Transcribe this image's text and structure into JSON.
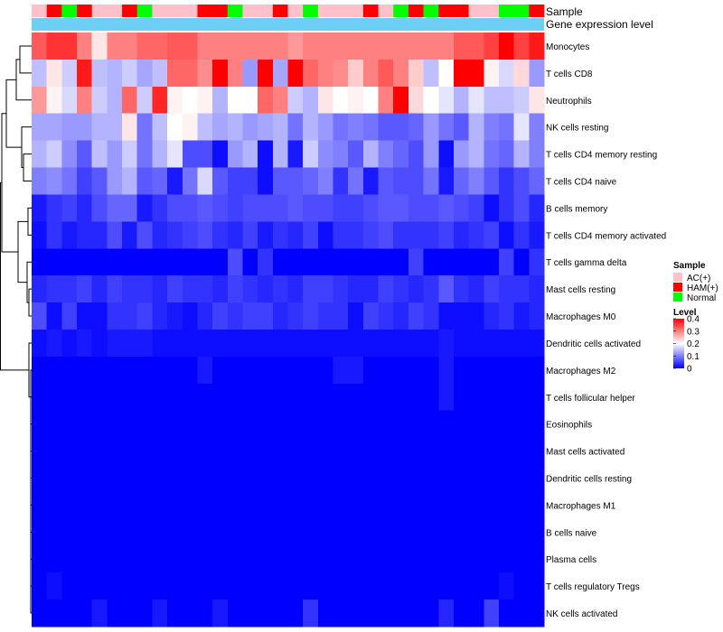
{
  "chart_data": {
    "type": "heatmap",
    "annotation_labels": {
      "sample": "Sample",
      "gene": "Gene expression level"
    },
    "legend": {
      "sample_title": "Sample",
      "sample_items": [
        {
          "label": "AC(+)",
          "color": "#FFC0CB"
        },
        {
          "label": "HAM(+)",
          "color": "#FF0000"
        },
        {
          "label": "Normal",
          "color": "#00FF00"
        }
      ],
      "level_title": "Level",
      "level_ticks": [
        "0.4",
        "0.3",
        "0.2",
        "0.1",
        "0"
      ],
      "level_range": [
        0,
        0.4
      ],
      "color_low": "#0000FF",
      "color_mid": "#FFFFFF",
      "color_high": "#FF0000"
    },
    "gene_bar_color": "#6ECFF6",
    "samples": [
      "AC(+)",
      "HAM(+)",
      "Normal",
      "HAM(+)",
      "AC(+)",
      "AC(+)",
      "HAM(+)",
      "Normal",
      "AC(+)",
      "AC(+)",
      "AC(+)",
      "HAM(+)",
      "HAM(+)",
      "Normal",
      "AC(+)",
      "AC(+)",
      "HAM(+)",
      "AC(+)",
      "Normal",
      "AC(+)",
      "AC(+)",
      "AC(+)",
      "HAM(+)",
      "AC(+)",
      "Normal",
      "HAM(+)",
      "Normal",
      "HAM(+)",
      "HAM(+)",
      "AC(+)",
      "AC(+)",
      "Normal",
      "Normal",
      "HAM(+)"
    ],
    "rows": [
      {
        "label": "Monocytes",
        "values": [
          0.33,
          0.36,
          0.36,
          0.3,
          0.22,
          0.3,
          0.3,
          0.32,
          0.32,
          0.33,
          0.33,
          0.3,
          0.3,
          0.3,
          0.3,
          0.3,
          0.3,
          0.28,
          0.3,
          0.3,
          0.3,
          0.3,
          0.3,
          0.3,
          0.3,
          0.3,
          0.3,
          0.3,
          0.33,
          0.33,
          0.35,
          0.4,
          0.35,
          0.38
        ]
      },
      {
        "label": "T cells CD8",
        "values": [
          0.15,
          0.22,
          0.16,
          0.38,
          0.15,
          0.14,
          0.16,
          0.13,
          0.15,
          0.32,
          0.32,
          0.29,
          0.44,
          0.3,
          0.12,
          0.4,
          0.13,
          0.42,
          0.32,
          0.3,
          0.29,
          0.24,
          0.3,
          0.33,
          0.3,
          0.24,
          0.15,
          0.2,
          0.45,
          0.45,
          0.21,
          0.17,
          0.23,
          0.12
        ]
      },
      {
        "label": "Neutrophils",
        "values": [
          0.28,
          0.21,
          0.17,
          0.3,
          0.16,
          0.14,
          0.32,
          0.16,
          0.37,
          0.21,
          0.2,
          0.21,
          0.14,
          0.2,
          0.2,
          0.32,
          0.3,
          0.16,
          0.14,
          0.22,
          0.2,
          0.21,
          0.2,
          0.3,
          0.42,
          0.23,
          0.2,
          0.18,
          0.14,
          0.18,
          0.15,
          0.15,
          0.16,
          0.22
        ]
      },
      {
        "label": "NK cells resting",
        "values": [
          0.13,
          0.13,
          0.12,
          0.12,
          0.14,
          0.14,
          0.22,
          0.09,
          0.15,
          0.2,
          0.21,
          0.15,
          0.13,
          0.14,
          0.12,
          0.13,
          0.14,
          0.09,
          0.14,
          0.12,
          0.09,
          0.1,
          0.09,
          0.07,
          0.07,
          0.08,
          0.12,
          0.09,
          0.07,
          0.14,
          0.1,
          0.09,
          0.18,
          0.1
        ]
      },
      {
        "label": "T cells CD4 memory resting",
        "values": [
          0.14,
          0.16,
          0.11,
          0.07,
          0.15,
          0.12,
          0.16,
          0.09,
          0.14,
          0.18,
          0.06,
          0.06,
          0.01,
          0.12,
          0.14,
          0.01,
          0.14,
          0.02,
          0.16,
          0.11,
          0.1,
          0.07,
          0.14,
          0.1,
          0.08,
          0.06,
          0.12,
          0.01,
          0.12,
          0.14,
          0.09,
          0.08,
          0.14,
          0.1
        ]
      },
      {
        "label": "T cells CD4 naive",
        "values": [
          0.1,
          0.11,
          0.09,
          0.05,
          0.07,
          0.12,
          0.14,
          0.07,
          0.08,
          0.02,
          0.09,
          0.17,
          0.07,
          0.05,
          0.05,
          0.01,
          0.07,
          0.07,
          0.08,
          0.1,
          0.04,
          0.09,
          0.02,
          0.07,
          0.06,
          0.06,
          0.09,
          0.02,
          0.08,
          0.1,
          0.07,
          0.04,
          0.06,
          0.08
        ]
      },
      {
        "label": "B cells memory",
        "values": [
          0.02,
          0.04,
          0.05,
          0.03,
          0.06,
          0.08,
          0.08,
          0.02,
          0.04,
          0.06,
          0.06,
          0.07,
          0.06,
          0.05,
          0.06,
          0.06,
          0.06,
          0.07,
          0.06,
          0.06,
          0.05,
          0.05,
          0.06,
          0.07,
          0.07,
          0.06,
          0.06,
          0.07,
          0.06,
          0.05,
          0.01,
          0.04,
          0.06,
          0.03
        ]
      },
      {
        "label": "T cells CD4 memory activated",
        "values": [
          0.01,
          0.04,
          0.02,
          0.03,
          0.03,
          0.06,
          0.02,
          0.06,
          0.03,
          0.04,
          0.05,
          0.06,
          0.04,
          0.03,
          0.05,
          0.02,
          0.04,
          0.03,
          0.05,
          0.01,
          0.04,
          0.04,
          0.05,
          0.06,
          0.04,
          0.04,
          0.04,
          0.05,
          0.03,
          0.04,
          0.05,
          0.01,
          0.04,
          0.02
        ]
      },
      {
        "label": "T cells gamma delta",
        "values": [
          0,
          0,
          0,
          0,
          0,
          0,
          0,
          0,
          0,
          0,
          0,
          0,
          0,
          0.06,
          0,
          0.04,
          0,
          0,
          0,
          0,
          0,
          0,
          0,
          0,
          0,
          0.05,
          0,
          0,
          0,
          0,
          0,
          0.05,
          0,
          0.04
        ]
      },
      {
        "label": "Mast cells resting",
        "values": [
          0.03,
          0.04,
          0.04,
          0.05,
          0.03,
          0.05,
          0.04,
          0.04,
          0.03,
          0.05,
          0.04,
          0.04,
          0.03,
          0.05,
          0.04,
          0.03,
          0.04,
          0.03,
          0.05,
          0.05,
          0.04,
          0.03,
          0.03,
          0.05,
          0.04,
          0.03,
          0.04,
          0.07,
          0.04,
          0.03,
          0.05,
          0.04,
          0.04,
          0.03
        ]
      },
      {
        "label": "Macrophages M0",
        "values": [
          0.06,
          0.01,
          0.05,
          0.01,
          0.01,
          0.04,
          0.04,
          0.05,
          0.03,
          0.02,
          0.01,
          0.03,
          0.05,
          0.04,
          0.05,
          0.05,
          0.03,
          0.04,
          0.05,
          0.04,
          0.04,
          0.01,
          0.05,
          0.04,
          0.03,
          0.05,
          0.04,
          0.01,
          0.01,
          0.01,
          0.03,
          0.04,
          0.02,
          0.03
        ]
      },
      {
        "label": "Dendritic cells activated",
        "values": [
          0.01,
          0.02,
          0.01,
          0.02,
          0.01,
          0.02,
          0.02,
          0.02,
          0.01,
          0.01,
          0.01,
          0.01,
          0.01,
          0.01,
          0.01,
          0.01,
          0.01,
          0.01,
          0.01,
          0.01,
          0.01,
          0.01,
          0.01,
          0.01,
          0.01,
          0.01,
          0.01,
          0.02,
          0.01,
          0.01,
          0.01,
          0.01,
          0.01,
          0.01
        ]
      },
      {
        "label": "Macrophages M2",
        "values": [
          0,
          0,
          0,
          0,
          0,
          0,
          0,
          0,
          0,
          0,
          0,
          0.02,
          0,
          0,
          0,
          0,
          0,
          0,
          0,
          0,
          0.02,
          0.02,
          0,
          0,
          0,
          0,
          0,
          0.02,
          0,
          0,
          0,
          0,
          0,
          0
        ]
      },
      {
        "label": "T cells follicular helper",
        "values": [
          0,
          0,
          0,
          0,
          0,
          0,
          0,
          0,
          0,
          0,
          0,
          0,
          0,
          0,
          0,
          0,
          0,
          0,
          0,
          0,
          0,
          0,
          0,
          0,
          0,
          0,
          0,
          0.02,
          0,
          0,
          0,
          0,
          0,
          0
        ]
      },
      {
        "label": "Eosinophils",
        "values": [
          0,
          0,
          0,
          0,
          0,
          0,
          0,
          0,
          0,
          0,
          0,
          0,
          0,
          0,
          0,
          0,
          0,
          0,
          0,
          0,
          0,
          0,
          0,
          0,
          0,
          0,
          0,
          0,
          0,
          0,
          0,
          0,
          0,
          0
        ]
      },
      {
        "label": "Mast cells activated",
        "values": [
          0,
          0,
          0,
          0,
          0,
          0,
          0,
          0,
          0,
          0,
          0,
          0,
          0,
          0,
          0,
          0,
          0,
          0,
          0,
          0,
          0,
          0,
          0,
          0,
          0,
          0,
          0,
          0,
          0,
          0,
          0,
          0,
          0,
          0
        ]
      },
      {
        "label": "Dendritic cells resting",
        "values": [
          0,
          0,
          0,
          0,
          0,
          0,
          0,
          0,
          0,
          0,
          0,
          0,
          0,
          0,
          0,
          0,
          0,
          0,
          0,
          0,
          0,
          0,
          0,
          0,
          0,
          0,
          0,
          0,
          0,
          0,
          0,
          0,
          0,
          0
        ]
      },
      {
        "label": "Macrophages M1",
        "values": [
          0,
          0,
          0,
          0,
          0,
          0,
          0,
          0,
          0,
          0,
          0,
          0,
          0,
          0,
          0,
          0,
          0,
          0,
          0,
          0,
          0,
          0,
          0,
          0,
          0,
          0,
          0,
          0,
          0,
          0,
          0,
          0,
          0,
          0
        ]
      },
      {
        "label": "B cells naive",
        "values": [
          0,
          0,
          0,
          0,
          0,
          0,
          0,
          0,
          0,
          0,
          0,
          0,
          0,
          0,
          0,
          0,
          0,
          0,
          0,
          0,
          0,
          0,
          0,
          0,
          0,
          0,
          0,
          0,
          0,
          0,
          0,
          0,
          0,
          0
        ]
      },
      {
        "label": "Plasma cells",
        "values": [
          0,
          0,
          0,
          0,
          0,
          0,
          0,
          0,
          0,
          0,
          0,
          0,
          0,
          0,
          0,
          0,
          0,
          0,
          0,
          0,
          0,
          0,
          0,
          0,
          0,
          0,
          0,
          0,
          0,
          0,
          0,
          0,
          0,
          0
        ]
      },
      {
        "label": "T cells regulatory  Tregs",
        "values": [
          0,
          0.01,
          0,
          0,
          0,
          0,
          0,
          0,
          0,
          0,
          0,
          0,
          0,
          0,
          0,
          0,
          0,
          0,
          0,
          0,
          0,
          0,
          0,
          0,
          0,
          0,
          0,
          0,
          0,
          0,
          0,
          0.01,
          0,
          0
        ]
      },
      {
        "label": "NK cells activated",
        "values": [
          0,
          0,
          0,
          0,
          0.02,
          0,
          0,
          0,
          0.02,
          0,
          0,
          0,
          0.02,
          0,
          0,
          0,
          0,
          0,
          0.04,
          0,
          0,
          0,
          0,
          0,
          0,
          0,
          0,
          0.03,
          0,
          0,
          0.05,
          0,
          0,
          0
        ]
      }
    ]
  }
}
